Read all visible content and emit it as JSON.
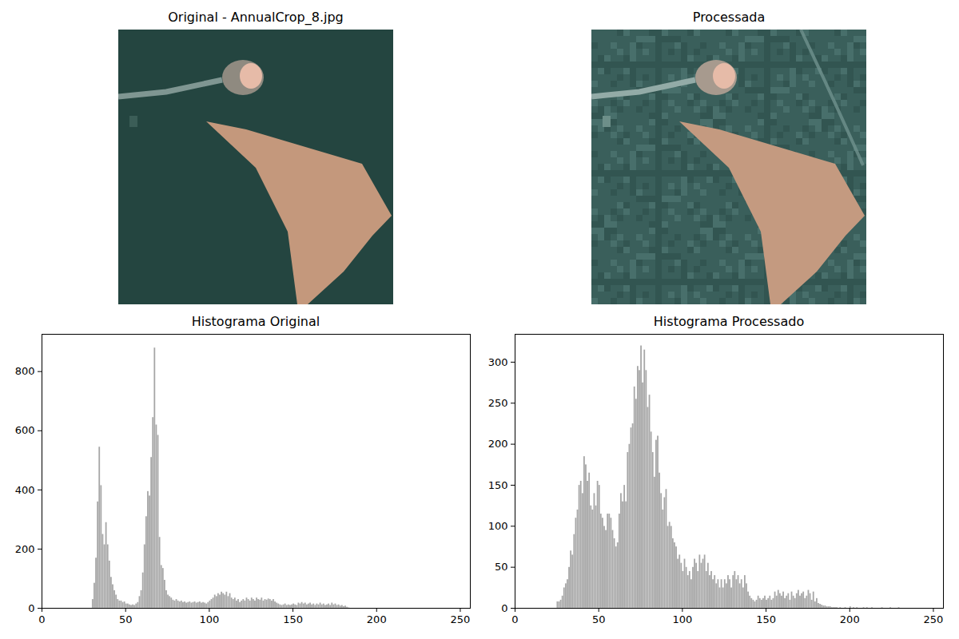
{
  "chart_data": [
    {
      "type": "image",
      "title": "Original - AnnualCrop_8.jpg"
    },
    {
      "type": "image",
      "title": "Processada"
    },
    {
      "type": "histogram",
      "title": "Histograma Original",
      "color": "#a6a6a6",
      "bins": [
        30,
        31,
        32,
        33,
        34,
        35,
        36,
        37,
        38,
        39,
        40,
        41,
        42,
        43,
        44,
        45,
        46,
        47,
        48,
        49,
        50,
        51,
        52,
        53,
        54,
        55,
        56,
        57,
        58,
        59,
        60,
        61,
        62,
        63,
        64,
        65,
        66,
        67,
        68,
        69,
        70,
        71,
        72,
        73,
        74,
        75,
        76,
        77,
        78,
        79,
        80,
        81,
        82,
        83,
        84,
        85,
        86,
        87,
        88,
        89,
        90,
        91,
        92,
        93,
        94,
        95,
        96,
        97,
        98,
        99,
        100,
        101,
        102,
        103,
        104,
        105,
        106,
        107,
        108,
        109,
        110,
        111,
        112,
        113,
        114,
        115,
        116,
        117,
        118,
        119,
        120,
        121,
        122,
        123,
        124,
        125,
        126,
        127,
        128,
        129,
        130,
        131,
        132,
        133,
        134,
        135,
        136,
        137,
        138,
        139,
        140,
        141,
        142,
        143,
        144,
        145,
        146,
        147,
        148,
        149,
        150,
        151,
        152,
        153,
        154,
        155,
        156,
        157,
        158,
        159,
        160,
        161,
        162,
        163,
        164,
        165,
        166,
        167,
        168,
        169,
        170,
        171,
        172,
        173,
        174,
        175,
        176,
        177,
        178,
        179,
        180,
        181,
        182,
        183,
        184
      ],
      "values": [
        30,
        85,
        170,
        360,
        545,
        415,
        250,
        215,
        290,
        215,
        160,
        105,
        80,
        60,
        45,
        30,
        25,
        25,
        20,
        22,
        15,
        15,
        12,
        10,
        12,
        10,
        15,
        20,
        40,
        60,
        120,
        215,
        310,
        395,
        380,
        510,
        645,
        880,
        620,
        585,
        240,
        145,
        135,
        95,
        60,
        45,
        40,
        35,
        28,
        25,
        30,
        25,
        22,
        25,
        20,
        22,
        18,
        20,
        22,
        18,
        20,
        22,
        18,
        20,
        22,
        18,
        20,
        18,
        15,
        20,
        25,
        30,
        35,
        45,
        40,
        50,
        45,
        55,
        50,
        45,
        55,
        40,
        50,
        35,
        30,
        35,
        25,
        30,
        20,
        25,
        30,
        25,
        35,
        30,
        25,
        35,
        30,
        25,
        35,
        30,
        28,
        35,
        25,
        30,
        28,
        32,
        30,
        25,
        30,
        22,
        18,
        15,
        12,
        10,
        12,
        15,
        10,
        12,
        10,
        12,
        15,
        12,
        10,
        18,
        15,
        20,
        15,
        18,
        12,
        15,
        18,
        12,
        15,
        10,
        15,
        12,
        18,
        12,
        15,
        10,
        12,
        15,
        10,
        18,
        12,
        15,
        10,
        12,
        8,
        10,
        6,
        8,
        4,
        2
      ],
      "xlim": [
        0,
        256
      ],
      "xticks": [
        0,
        50,
        100,
        150,
        200,
        250
      ],
      "ylim": [
        0,
        926
      ],
      "yticks": [
        0,
        200,
        400,
        600,
        800
      ]
    },
    {
      "type": "histogram",
      "title": "Histograma Processado",
      "color": "#a6a6a6",
      "bins": [
        25,
        26,
        27,
        28,
        29,
        30,
        31,
        32,
        33,
        34,
        35,
        36,
        37,
        38,
        39,
        40,
        41,
        42,
        43,
        44,
        45,
        46,
        47,
        48,
        49,
        50,
        51,
        52,
        53,
        54,
        55,
        56,
        57,
        58,
        59,
        60,
        61,
        62,
        63,
        64,
        65,
        66,
        67,
        68,
        69,
        70,
        71,
        72,
        73,
        74,
        75,
        76,
        77,
        78,
        79,
        80,
        81,
        82,
        83,
        84,
        85,
        86,
        87,
        88,
        89,
        90,
        91,
        92,
        93,
        94,
        95,
        96,
        97,
        98,
        99,
        100,
        101,
        102,
        103,
        104,
        105,
        106,
        107,
        108,
        109,
        110,
        111,
        112,
        113,
        114,
        115,
        116,
        117,
        118,
        119,
        120,
        121,
        122,
        123,
        124,
        125,
        126,
        127,
        128,
        129,
        130,
        131,
        132,
        133,
        134,
        135,
        136,
        137,
        138,
        139,
        140,
        141,
        142,
        143,
        144,
        145,
        146,
        147,
        148,
        149,
        150,
        151,
        152,
        153,
        154,
        155,
        156,
        157,
        158,
        159,
        160,
        161,
        162,
        163,
        164,
        165,
        166,
        167,
        168,
        169,
        170,
        171,
        172,
        173,
        174,
        175,
        176,
        177,
        178,
        179,
        180,
        181,
        182,
        183,
        184,
        185,
        186,
        187,
        188,
        189,
        190,
        191,
        192,
        193,
        194,
        195,
        196,
        197,
        198,
        199,
        200,
        201,
        202,
        203,
        204,
        205,
        206,
        207,
        208,
        209,
        210,
        211,
        212,
        213,
        214,
        215,
        216,
        217,
        218,
        219,
        220,
        221,
        222,
        223,
        224,
        225,
        226,
        227,
        228,
        229,
        230
      ],
      "values": [
        8,
        8,
        10,
        15,
        25,
        30,
        35,
        50,
        70,
        65,
        90,
        110,
        120,
        150,
        155,
        140,
        185,
        175,
        155,
        165,
        125,
        120,
        140,
        125,
        155,
        150,
        115,
        110,
        100,
        95,
        115,
        115,
        110,
        95,
        85,
        75,
        80,
        115,
        140,
        130,
        150,
        130,
        190,
        200,
        220,
        225,
        270,
        255,
        295,
        290,
        320,
        275,
        315,
        290,
        245,
        260,
        215,
        190,
        160,
        205,
        210,
        165,
        140,
        120,
        135,
        145,
        100,
        105,
        100,
        85,
        80,
        75,
        60,
        65,
        55,
        45,
        60,
        50,
        40,
        45,
        35,
        50,
        60,
        55,
        45,
        65,
        55,
        60,
        65,
        45,
        55,
        40,
        45,
        35,
        40,
        30,
        35,
        25,
        35,
        25,
        35,
        30,
        40,
        35,
        25,
        40,
        45,
        35,
        40,
        30,
        35,
        25,
        40,
        30,
        20,
        15,
        12,
        10,
        8,
        10,
        15,
        12,
        10,
        12,
        15,
        10,
        12,
        15,
        10,
        12,
        20,
        15,
        22,
        18,
        15,
        20,
        12,
        15,
        18,
        10,
        20,
        15,
        12,
        18,
        22,
        15,
        18,
        20,
        12,
        15,
        22,
        18,
        10,
        20,
        8,
        12,
        6,
        5,
        4,
        3,
        3,
        2,
        2,
        2,
        1,
        1,
        1,
        1,
        0,
        1,
        0,
        0,
        1,
        0,
        0,
        2,
        0,
        1,
        0,
        1,
        0,
        0,
        0,
        1,
        0,
        1,
        0,
        0,
        1,
        0,
        0,
        0,
        0,
        0,
        1,
        0,
        0,
        0,
        0,
        1,
        0,
        0,
        0,
        0,
        1
      ],
      "xlim": [
        0,
        256
      ],
      "xticks": [
        0,
        50,
        100,
        150,
        200,
        250
      ],
      "ylim": [
        0,
        334
      ],
      "yticks": [
        0,
        50,
        100,
        150,
        200,
        250,
        300
      ]
    }
  ]
}
